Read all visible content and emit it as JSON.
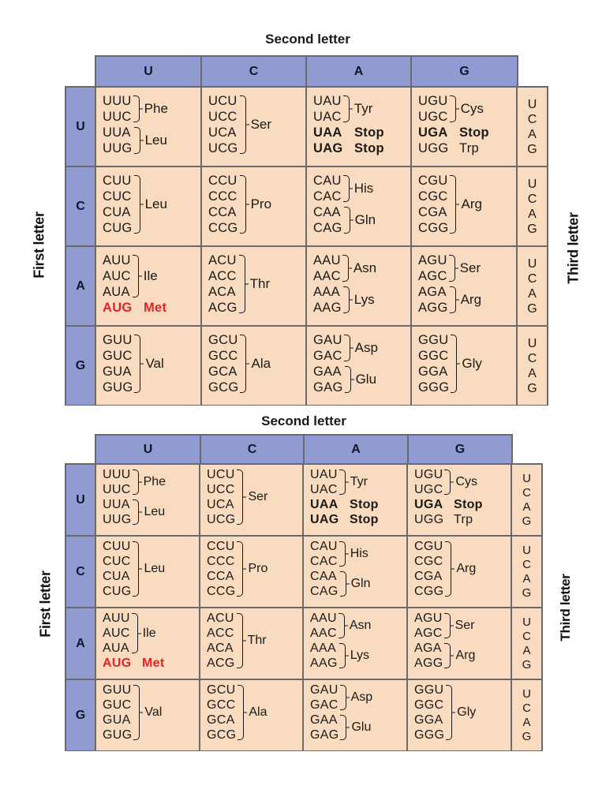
{
  "colors": {
    "header_bg": "#8f9bd1",
    "cell_bg": "#f9dbbf",
    "border": "#6a6a6a",
    "start_codon": "#e0262b"
  },
  "labels": {
    "second_letter": "Second letter",
    "first_letter": "First letter",
    "third_letter": "Third letter"
  },
  "second_letters": [
    "U",
    "C",
    "A",
    "G"
  ],
  "first_letters": [
    "U",
    "C",
    "A",
    "G"
  ],
  "third_letters": [
    "U",
    "C",
    "A",
    "G"
  ],
  "tables": [
    {
      "id": "table-1",
      "rows": [
        {
          "first": "U",
          "cells": [
            {
              "groups": [
                {
                  "codons": [
                    "UUU",
                    "UUC"
                  ],
                  "aa": "Phe"
                },
                {
                  "codons": [
                    "UUA",
                    "UUG"
                  ],
                  "aa": "Leu"
                }
              ]
            },
            {
              "groups": [
                {
                  "codons": [
                    "UCU",
                    "UCC",
                    "UCA",
                    "UCG"
                  ],
                  "aa": "Ser"
                }
              ]
            },
            {
              "groups": [
                {
                  "codons": [
                    "UAU",
                    "UAC"
                  ],
                  "aa": "Tyr"
                },
                {
                  "single": true,
                  "codon": "UAA",
                  "aa": "Stop",
                  "style": "bold"
                },
                {
                  "single": true,
                  "codon": "UAG",
                  "aa": "Stop",
                  "style": "bold"
                }
              ]
            },
            {
              "groups": [
                {
                  "codons": [
                    "UGU",
                    "UGC"
                  ],
                  "aa": "Cys"
                },
                {
                  "single": true,
                  "codon": "UGA",
                  "aa": "Stop",
                  "style": "bold"
                },
                {
                  "single": true,
                  "codon": "UGG",
                  "aa": "Trp",
                  "style": "normal"
                }
              ]
            }
          ],
          "third": [
            "U",
            "C",
            "A",
            "G"
          ]
        },
        {
          "first": "C",
          "cells": [
            {
              "groups": [
                {
                  "codons": [
                    "CUU",
                    "CUC",
                    "CUA",
                    "CUG"
                  ],
                  "aa": "Leu"
                }
              ]
            },
            {
              "groups": [
                {
                  "codons": [
                    "CCU",
                    "CCC",
                    "CCA",
                    "CCG"
                  ],
                  "aa": "Pro"
                }
              ]
            },
            {
              "groups": [
                {
                  "codons": [
                    "CAU",
                    "CAC"
                  ],
                  "aa": "His"
                },
                {
                  "codons": [
                    "CAA",
                    "CAG"
                  ],
                  "aa": "Gln"
                }
              ]
            },
            {
              "groups": [
                {
                  "codons": [
                    "CGU",
                    "CGC",
                    "CGA",
                    "CGG"
                  ],
                  "aa": "Arg"
                }
              ]
            }
          ],
          "third": [
            "U",
            "C",
            "A",
            "G"
          ]
        },
        {
          "first": "A",
          "cells": [
            {
              "groups": [
                {
                  "codons": [
                    "AUU",
                    "AUC",
                    "AUA"
                  ],
                  "aa": "Ile"
                },
                {
                  "single": true,
                  "codon": "AUG",
                  "aa": "Met",
                  "style": "red"
                }
              ]
            },
            {
              "groups": [
                {
                  "codons": [
                    "ACU",
                    "ACC",
                    "ACA",
                    "ACG"
                  ],
                  "aa": "Thr"
                }
              ]
            },
            {
              "groups": [
                {
                  "codons": [
                    "AAU",
                    "AAC"
                  ],
                  "aa": "Asn"
                },
                {
                  "codons": [
                    "AAA",
                    "AAG"
                  ],
                  "aa": "Lys"
                }
              ]
            },
            {
              "groups": [
                {
                  "codons": [
                    "AGU",
                    "AGC"
                  ],
                  "aa": "Ser"
                },
                {
                  "codons": [
                    "AGA",
                    "AGG"
                  ],
                  "aa": "Arg"
                }
              ]
            }
          ],
          "third": [
            "U",
            "C",
            "A",
            "G"
          ]
        },
        {
          "first": "G",
          "cells": [
            {
              "groups": [
                {
                  "codons": [
                    "GUU",
                    "GUC",
                    "GUA",
                    "GUG"
                  ],
                  "aa": "Val"
                }
              ]
            },
            {
              "groups": [
                {
                  "codons": [
                    "GCU",
                    "GCC",
                    "GCA",
                    "GCG"
                  ],
                  "aa": "Ala"
                }
              ]
            },
            {
              "groups": [
                {
                  "codons": [
                    "GAU",
                    "GAC"
                  ],
                  "aa": "Asp"
                },
                {
                  "codons": [
                    "GAA",
                    "GAG"
                  ],
                  "aa": "Glu"
                }
              ]
            },
            {
              "groups": [
                {
                  "codons": [
                    "GGU",
                    "GGC",
                    "GGA",
                    "GGG"
                  ],
                  "aa": "Gly"
                }
              ]
            }
          ],
          "third": [
            "U",
            "C",
            "A",
            "G"
          ]
        }
      ]
    },
    {
      "id": "table-2",
      "rows": [
        {
          "first": "U",
          "cells": [
            {
              "groups": [
                {
                  "codons": [
                    "UUU",
                    "UUC"
                  ],
                  "aa": "Phe"
                },
                {
                  "codons": [
                    "UUA",
                    "UUG"
                  ],
                  "aa": "Leu"
                }
              ]
            },
            {
              "groups": [
                {
                  "codons": [
                    "UCU",
                    "UCC",
                    "UCA",
                    "UCG"
                  ],
                  "aa": "Ser"
                }
              ]
            },
            {
              "groups": [
                {
                  "codons": [
                    "UAU",
                    "UAC"
                  ],
                  "aa": "Tyr"
                },
                {
                  "single": true,
                  "codon": "UAA",
                  "aa": "Stop",
                  "style": "bold"
                },
                {
                  "single": true,
                  "codon": "UAG",
                  "aa": "Stop",
                  "style": "bold"
                }
              ]
            },
            {
              "groups": [
                {
                  "codons": [
                    "UGU",
                    "UGC"
                  ],
                  "aa": "Cys"
                },
                {
                  "single": true,
                  "codon": "UGA",
                  "aa": "Stop",
                  "style": "bold"
                },
                {
                  "single": true,
                  "codon": "UGG",
                  "aa": "Trp",
                  "style": "normal"
                }
              ]
            }
          ],
          "third": [
            "U",
            "C",
            "A",
            "G"
          ]
        },
        {
          "first": "C",
          "cells": [
            {
              "groups": [
                {
                  "codons": [
                    "CUU",
                    "CUC",
                    "CUA",
                    "CUG"
                  ],
                  "aa": "Leu"
                }
              ]
            },
            {
              "groups": [
                {
                  "codons": [
                    "CCU",
                    "CCC",
                    "CCA",
                    "CCG"
                  ],
                  "aa": "Pro"
                }
              ]
            },
            {
              "groups": [
                {
                  "codons": [
                    "CAU",
                    "CAC"
                  ],
                  "aa": "His"
                },
                {
                  "codons": [
                    "CAA",
                    "CAG"
                  ],
                  "aa": "Gln"
                }
              ]
            },
            {
              "groups": [
                {
                  "codons": [
                    "CGU",
                    "CGC",
                    "CGA",
                    "CGG"
                  ],
                  "aa": "Arg"
                }
              ]
            }
          ],
          "third": [
            "U",
            "C",
            "A",
            "G"
          ]
        },
        {
          "first": "A",
          "cells": [
            {
              "groups": [
                {
                  "codons": [
                    "AUU",
                    "AUC",
                    "AUA"
                  ],
                  "aa": "Ile"
                },
                {
                  "single": true,
                  "codon": "AUG",
                  "aa": "Met",
                  "style": "red"
                }
              ]
            },
            {
              "groups": [
                {
                  "codons": [
                    "ACU",
                    "ACC",
                    "ACA",
                    "ACG"
                  ],
                  "aa": "Thr"
                }
              ]
            },
            {
              "groups": [
                {
                  "codons": [
                    "AAU",
                    "AAC"
                  ],
                  "aa": "Asn"
                },
                {
                  "codons": [
                    "AAA",
                    "AAG"
                  ],
                  "aa": "Lys"
                }
              ]
            },
            {
              "groups": [
                {
                  "codons": [
                    "AGU",
                    "AGC"
                  ],
                  "aa": "Ser"
                },
                {
                  "codons": [
                    "AGA",
                    "AGG"
                  ],
                  "aa": "Arg"
                }
              ]
            }
          ],
          "third": [
            "U",
            "C",
            "A",
            "G"
          ]
        },
        {
          "first": "G",
          "cells": [
            {
              "groups": [
                {
                  "codons": [
                    "GUU",
                    "GUC",
                    "GUA",
                    "GUG"
                  ],
                  "aa": "Val"
                }
              ]
            },
            {
              "groups": [
                {
                  "codons": [
                    "GCU",
                    "GCC",
                    "GCA",
                    "GCG"
                  ],
                  "aa": "Ala"
                }
              ]
            },
            {
              "groups": [
                {
                  "codons": [
                    "GAU",
                    "GAC"
                  ],
                  "aa": "Asp"
                },
                {
                  "codons": [
                    "GAA",
                    "GAG"
                  ],
                  "aa": "Glu"
                }
              ]
            },
            {
              "groups": [
                {
                  "codons": [
                    "GGU",
                    "GGC",
                    "GGA",
                    "GGG"
                  ],
                  "aa": "Gly"
                }
              ]
            }
          ],
          "third": [
            "U",
            "C",
            "A",
            "G"
          ]
        }
      ]
    }
  ]
}
